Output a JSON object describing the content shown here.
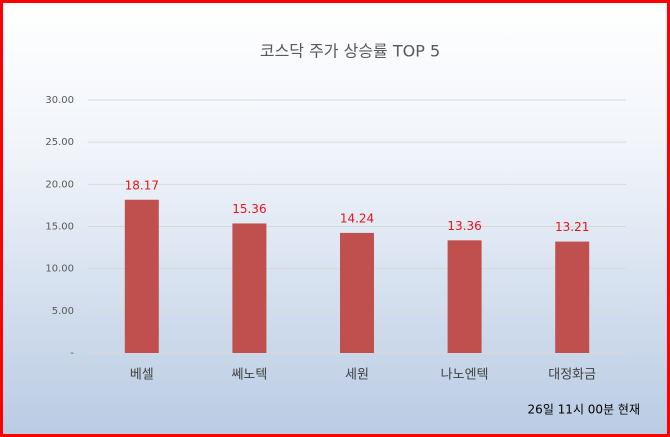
{
  "chart_data": {
    "type": "bar",
    "title": "코스닥 주가 상승률 TOP 5",
    "categories": [
      "베셀",
      "쎄노텍",
      "세원",
      "나노엔텍",
      "대정화금"
    ],
    "values": [
      18.17,
      15.36,
      14.24,
      13.36,
      13.21
    ],
    "color": "#c0504d",
    "label_color": "#e8141b",
    "ylim": [
      0,
      30
    ],
    "yticks": [
      {
        "value": 0,
        "label": "-"
      },
      {
        "value": 5,
        "label": "5.00"
      },
      {
        "value": 10,
        "label": "10.00"
      },
      {
        "value": 15,
        "label": "15.00"
      },
      {
        "value": 20,
        "label": "20.00"
      },
      {
        "value": 25,
        "label": "25.00"
      },
      {
        "value": 30,
        "label": "30.00"
      }
    ],
    "grid": true,
    "annotation": "26일 11시  00분 현재"
  }
}
